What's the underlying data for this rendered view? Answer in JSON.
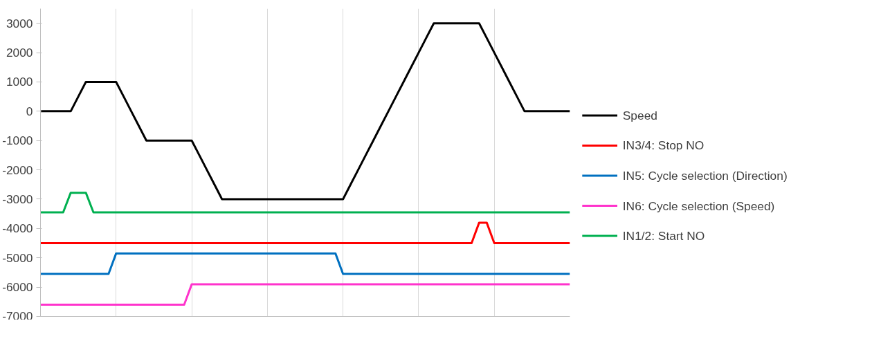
{
  "chart_data": {
    "type": "line",
    "categories": [
      null,
      null,
      null,
      null,
      null,
      null,
      null,
      null,
      null,
      null,
      null,
      null,
      null,
      null,
      null,
      null,
      null,
      null,
      null,
      null,
      null,
      null,
      null,
      null,
      null,
      null,
      null,
      null,
      null,
      null,
      null,
      null,
      null,
      null,
      null,
      null,
      null,
      null,
      null,
      null,
      null,
      null,
      null,
      null,
      null,
      null,
      null,
      null,
      null,
      null,
      null,
      null,
      null,
      null,
      null,
      null,
      null,
      null,
      null,
      null,
      null,
      null,
      null,
      null,
      null,
      null,
      null,
      null,
      null,
      null,
      null
    ],
    "ylim": [
      -7000,
      3500
    ],
    "yticks": [
      -7000,
      -6000,
      -5000,
      -4000,
      -3000,
      -2000,
      -1000,
      0,
      1000,
      2000,
      3000
    ],
    "tick_labels": "y",
    "grid": "x",
    "legend": "right",
    "series": [
      {
        "name": "Speed",
        "color": "#000000",
        "values": [
          0,
          0,
          0,
          0,
          0,
          500,
          1000,
          1000,
          1000,
          1000,
          1000,
          500,
          0,
          -500,
          -1000,
          -1000,
          -1000,
          -1000,
          -1000,
          -1000,
          -1000,
          -1500,
          -2000,
          -2500,
          -3000,
          -3000,
          -3000,
          -3000,
          -3000,
          -3000,
          -3000,
          -3000,
          -3000,
          -3000,
          -3000,
          -3000,
          -3000,
          -3000,
          -3000,
          -3000,
          -3000,
          -2500,
          -2000,
          -1500,
          -1000,
          -500,
          0,
          500,
          1000,
          1500,
          2000,
          2500,
          3000,
          3000,
          3000,
          3000,
          3000,
          3000,
          3000,
          2500,
          2000,
          1500,
          1000,
          500,
          0,
          0,
          0,
          0,
          0,
          0,
          0
        ]
      },
      {
        "name": "IN3/4: Stop NO",
        "color": "#ff0000",
        "values": [
          -4500,
          -4500,
          -4500,
          -4500,
          -4500,
          -4500,
          -4500,
          -4500,
          -4500,
          -4500,
          -4500,
          -4500,
          -4500,
          -4500,
          -4500,
          -4500,
          -4500,
          -4500,
          -4500,
          -4500,
          -4500,
          -4500,
          -4500,
          -4500,
          -4500,
          -4500,
          -4500,
          -4500,
          -4500,
          -4500,
          -4500,
          -4500,
          -4500,
          -4500,
          -4500,
          -4500,
          -4500,
          -4500,
          -4500,
          -4500,
          -4500,
          -4500,
          -4500,
          -4500,
          -4500,
          -4500,
          -4500,
          -4500,
          -4500,
          -4500,
          -4500,
          -4500,
          -4500,
          -4500,
          -4500,
          -4500,
          -4500,
          -4500,
          -3800,
          -3800,
          -4500,
          -4500,
          -4500,
          -4500,
          -4500,
          -4500,
          -4500,
          -4500,
          -4500,
          -4500,
          -4500
        ]
      },
      {
        "name": "IN5: Cycle selection (Direction)",
        "color": "#0070c0",
        "values": [
          -5550,
          -5550,
          -5550,
          -5550,
          -5550,
          -5550,
          -5550,
          -5550,
          -5550,
          -5550,
          -4850,
          -4850,
          -4850,
          -4850,
          -4850,
          -4850,
          -4850,
          -4850,
          -4850,
          -4850,
          -4850,
          -4850,
          -4850,
          -4850,
          -4850,
          -4850,
          -4850,
          -4850,
          -4850,
          -4850,
          -4850,
          -4850,
          -4850,
          -4850,
          -4850,
          -4850,
          -4850,
          -4850,
          -4850,
          -4850,
          -5550,
          -5550,
          -5550,
          -5550,
          -5550,
          -5550,
          -5550,
          -5550,
          -5550,
          -5550,
          -5550,
          -5550,
          -5550,
          -5550,
          -5550,
          -5550,
          -5550,
          -5550,
          -5550,
          -5550,
          -5550,
          -5550,
          -5550,
          -5550,
          -5550,
          -5550,
          -5550,
          -5550,
          -5550,
          -5550,
          -5550
        ]
      },
      {
        "name": "IN6: Cycle selection (Speed)",
        "color": "#ff33cc",
        "values": [
          -6600,
          -6600,
          -6600,
          -6600,
          -6600,
          -6600,
          -6600,
          -6600,
          -6600,
          -6600,
          -6600,
          -6600,
          -6600,
          -6600,
          -6600,
          -6600,
          -6600,
          -6600,
          -6600,
          -6600,
          -5900,
          -5900,
          -5900,
          -5900,
          -5900,
          -5900,
          -5900,
          -5900,
          -5900,
          -5900,
          -5900,
          -5900,
          -5900,
          -5900,
          -5900,
          -5900,
          -5900,
          -5900,
          -5900,
          -5900,
          -5900,
          -5900,
          -5900,
          -5900,
          -5900,
          -5900,
          -5900,
          -5900,
          -5900,
          -5900,
          -5900,
          -5900,
          -5900,
          -5900,
          -5900,
          -5900,
          -5900,
          -5900,
          -5900,
          -5900,
          -5900,
          -5900,
          -5900,
          -5900,
          -5900,
          -5900,
          -5900,
          -5900,
          -5900,
          -5900,
          -5900
        ]
      },
      {
        "name": "IN1/2: Start NO",
        "color": "#00b050",
        "values": [
          -3450,
          -3450,
          -3450,
          -3450,
          -2780,
          -2780,
          -2780,
          -3450,
          -3450,
          -3450,
          -3450,
          -3450,
          -3450,
          -3450,
          -3450,
          -3450,
          -3450,
          -3450,
          -3450,
          -3450,
          -3450,
          -3450,
          -3450,
          -3450,
          -3450,
          -3450,
          -3450,
          -3450,
          -3450,
          -3450,
          -3450,
          -3450,
          -3450,
          -3450,
          -3450,
          -3450,
          -3450,
          -3450,
          -3450,
          -3450,
          -3450,
          -3450,
          -3450,
          -3450,
          -3450,
          -3450,
          -3450,
          -3450,
          -3450,
          -3450,
          -3450,
          -3450,
          -3450,
          -3450,
          -3450,
          -3450,
          -3450,
          -3450,
          -3450,
          -3450,
          -3450,
          -3450,
          -3450,
          -3450,
          -3450,
          -3450,
          -3450,
          -3450,
          -3450,
          -3450,
          -3450
        ]
      }
    ]
  }
}
